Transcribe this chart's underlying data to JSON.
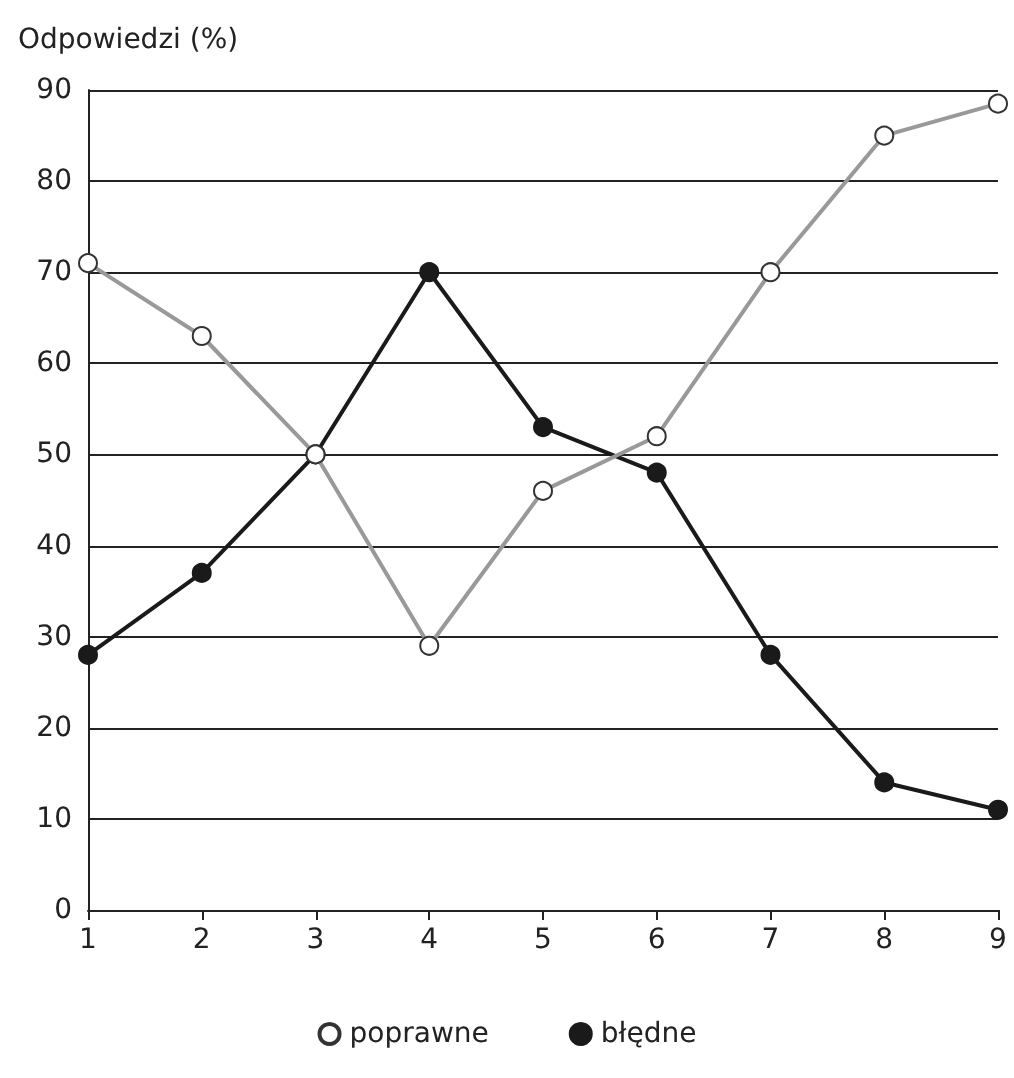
{
  "chart_data": {
    "type": "line",
    "ylabel": "Odpowiedzi (%)",
    "x": [
      1,
      2,
      3,
      4,
      5,
      6,
      7,
      8,
      9
    ],
    "series": [
      {
        "name": "poprawne",
        "color": "#999999",
        "values": [
          71,
          63,
          50,
          29,
          46,
          52,
          70,
          85,
          88.5
        ]
      },
      {
        "name": "błędne",
        "color": "#1a1a1a",
        "values": [
          28,
          37,
          50,
          70,
          53,
          48,
          28,
          14,
          11
        ]
      }
    ],
    "xlim": [
      1,
      9
    ],
    "xticks": [
      1,
      2,
      3,
      4,
      5,
      6,
      7,
      8,
      9
    ],
    "ylim": [
      0,
      90
    ],
    "yticks": [
      0,
      10,
      20,
      30,
      40,
      50,
      60,
      70,
      80,
      90
    ],
    "grid": "y",
    "legend": "bottom",
    "marker": "circle",
    "line_style": "solid"
  }
}
